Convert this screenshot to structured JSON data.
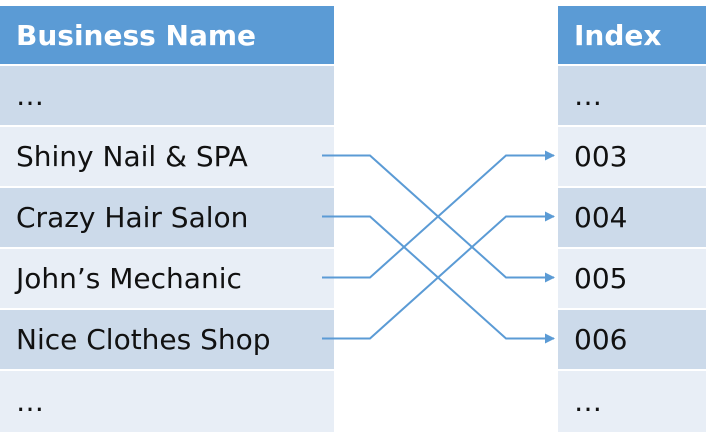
{
  "left_table": {
    "header": "Business Name",
    "rows": [
      "…",
      "Shiny Nail & SPA",
      "Crazy Hair Salon",
      "John’s Mechanic",
      "Nice Clothes Shop",
      "…"
    ]
  },
  "right_table": {
    "header": "Index",
    "rows": [
      "…",
      "003",
      "004",
      "005",
      "006",
      "…"
    ]
  },
  "mapping": [
    {
      "from": 1,
      "to": 3
    },
    {
      "from": 2,
      "to": 4
    },
    {
      "from": 3,
      "to": 1
    },
    {
      "from": 4,
      "to": 2
    }
  ],
  "colors": {
    "header_bg": "#5b9bd5",
    "row_dark": "#ccdaea",
    "row_light": "#e8eef6",
    "connector": "#5b9bd5"
  }
}
